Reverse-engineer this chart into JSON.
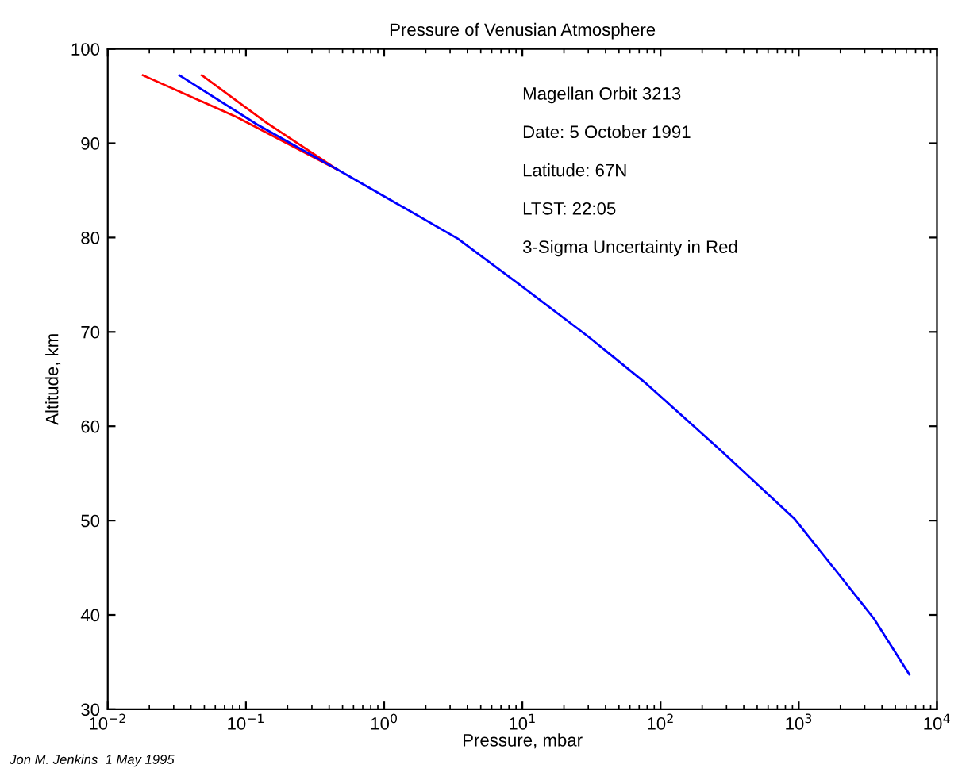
{
  "chart_data": {
    "type": "line",
    "title": "Pressure of Venusian Atmosphere",
    "xlabel": "Pressure, mbar",
    "ylabel": "Altitude, km",
    "log": "x",
    "grid": false,
    "marker": "none",
    "line_style": "solid",
    "xlim": [
      0.01,
      10000
    ],
    "ylim": [
      30,
      100
    ],
    "xticks": [
      {
        "value": 0.01,
        "label": "10$^{−2}$"
      },
      {
        "value": 0.1,
        "label": "10$^{−1}$"
      },
      {
        "value": 1,
        "label": "10$^{0}$"
      },
      {
        "value": 10,
        "label": "10$^{1}$"
      },
      {
        "value": 100,
        "label": "10$^{2}$"
      },
      {
        "value": 1000,
        "label": "10$^{3}$"
      },
      {
        "value": 10000,
        "label": "10$^{4}$"
      }
    ],
    "yticks": [
      30,
      40,
      50,
      60,
      70,
      80,
      90,
      100
    ],
    "series": [
      {
        "color": "#ff0000",
        "x": [
          0.018,
          0.085,
          0.46
        ],
        "values": [
          97.2,
          92.8,
          87.2
        ]
      },
      {
        "color": "#ff0000",
        "x": [
          0.048,
          0.14,
          0.46
        ],
        "values": [
          97.2,
          92.2,
          87.2
        ]
      },
      {
        "color": "#0000ff",
        "x": [
          0.033,
          0.12,
          0.46,
          1.17,
          3.4,
          9.8,
          30,
          79,
          270,
          930,
          2000,
          3500,
          6300
        ],
        "values": [
          97.2,
          92.0,
          87.2,
          83.8,
          79.9,
          74.9,
          69.5,
          64.5,
          57.5,
          50.2,
          44.1,
          39.6,
          33.7
        ]
      }
    ],
    "annotations": [
      "Magellan Orbit 3213",
      "Date: 5 October 1991",
      "Latitude: 67N",
      "LTST: 22:05",
      "3-Sigma Uncertainty in Red",
      "Jon M. Jenkins  1 May 1995"
    ]
  }
}
